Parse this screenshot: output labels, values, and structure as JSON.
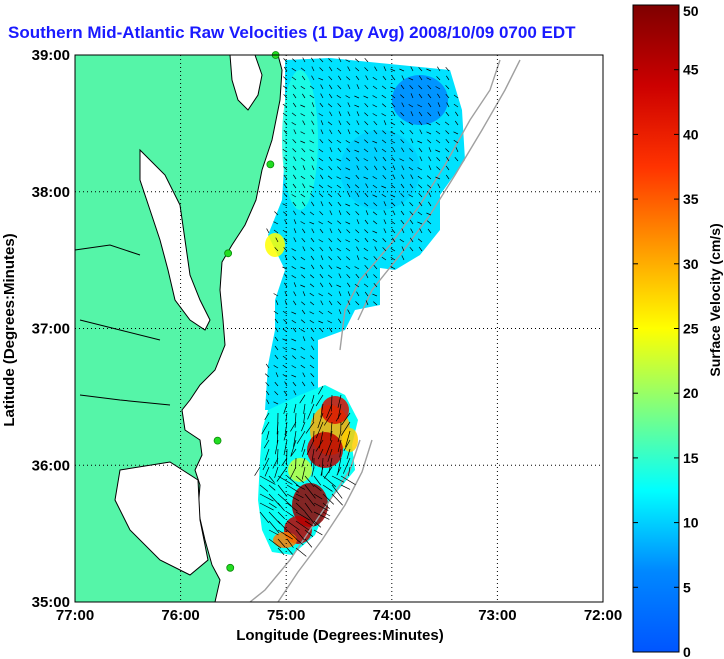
{
  "title": "Southern Mid-Atlantic Raw Velocities (1 Day Avg) 2008/10/09 0700 EDT",
  "xlabel": "Longitude (Degrees:Minutes)",
  "ylabel": "Latitude (Degrees:Minutes)",
  "colorbar_label": "Surface Velocity (cm/s)",
  "x_ticks": [
    {
      "value": -77,
      "label": "77:00"
    },
    {
      "value": -76,
      "label": "76:00"
    },
    {
      "value": -75,
      "label": "75:00"
    },
    {
      "value": -74,
      "label": "74:00"
    },
    {
      "value": -73,
      "label": "73:00"
    },
    {
      "value": -72,
      "label": "72:00"
    }
  ],
  "y_ticks": [
    {
      "value": 35,
      "label": "35:00"
    },
    {
      "value": 36,
      "label": "36:00"
    },
    {
      "value": 37,
      "label": "37:00"
    },
    {
      "value": 38,
      "label": "38:00"
    },
    {
      "value": 39,
      "label": "39:00"
    }
  ],
  "colorbar_ticks": [
    {
      "value": 0,
      "label": "0"
    },
    {
      "value": 5,
      "label": "5"
    },
    {
      "value": 10,
      "label": "10"
    },
    {
      "value": 15,
      "label": "15"
    },
    {
      "value": 20,
      "label": "20"
    },
    {
      "value": 25,
      "label": "25"
    },
    {
      "value": 30,
      "label": "30"
    },
    {
      "value": 35,
      "label": "35"
    },
    {
      "value": 40,
      "label": "40"
    },
    {
      "value": 45,
      "label": "45"
    },
    {
      "value": 50,
      "label": "50"
    }
  ],
  "colors": {
    "land": "#55f5a8",
    "title": "#1a1aff",
    "coast": "#000000",
    "station": "#22dd22",
    "bathymetry": "#a0a0a0"
  },
  "chart_data": {
    "type": "heatmap",
    "xlim": [
      -77,
      -72
    ],
    "ylim": [
      35,
      39
    ],
    "clim": [
      0,
      50
    ],
    "colormap": "jet",
    "grid": true,
    "legend": "colorbar-right",
    "stations": [
      {
        "lon": -75.1,
        "lat": 39.0
      },
      {
        "lon": -75.15,
        "lat": 38.2
      },
      {
        "lon": -75.55,
        "lat": 37.55
      },
      {
        "lon": -75.65,
        "lat": 36.18
      },
      {
        "lon": -75.53,
        "lat": 35.25
      }
    ]
  }
}
